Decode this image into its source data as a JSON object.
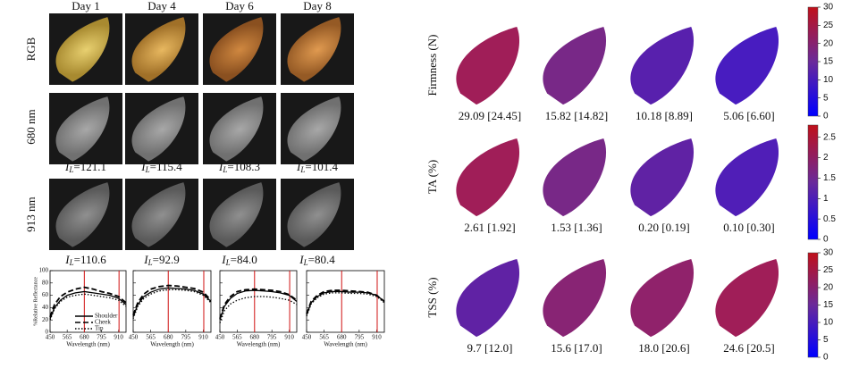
{
  "columns": [
    "Day 1",
    "Day 4",
    "Day 6",
    "Day 8"
  ],
  "rows": [
    "RGB",
    "680 nm",
    "913 nm"
  ],
  "intensity": {
    "symbol": "I",
    "subscript": "L",
    "eq": "=",
    "nm680": [
      "121.1",
      "115.4",
      "108.3",
      "101.4"
    ],
    "nm913": [
      "110.6",
      "92.9",
      "84.0",
      "80.4"
    ]
  },
  "spectra": {
    "xlabel": "Wavelength (nm)",
    "ylabel": "%Relative Reflectance",
    "xlim": [
      450,
      960
    ],
    "ylim": [
      0,
      100
    ],
    "xticks": [
      450,
      565,
      680,
      795,
      910
    ],
    "yticks": [
      0,
      20,
      40,
      60,
      80,
      100
    ],
    "band_lines": [
      680,
      913
    ],
    "x": [
      450,
      480,
      520,
      565,
      620,
      680,
      740,
      795,
      850,
      910,
      960
    ],
    "legend": [
      "Shoulder",
      "Cheek",
      "Tip"
    ],
    "charts": [
      [
        [
          22,
          40,
          52,
          60,
          64,
          66,
          64,
          62,
          60,
          55,
          45
        ],
        [
          25,
          45,
          58,
          65,
          70,
          73,
          70,
          66,
          63,
          58,
          48
        ],
        [
          20,
          38,
          50,
          57,
          60,
          62,
          60,
          58,
          56,
          52,
          42
        ]
      ],
      [
        [
          25,
          45,
          58,
          65,
          70,
          72,
          71,
          70,
          68,
          62,
          50
        ],
        [
          28,
          48,
          62,
          70,
          74,
          76,
          75,
          73,
          71,
          65,
          52
        ],
        [
          22,
          42,
          55,
          62,
          67,
          69,
          69,
          68,
          66,
          60,
          48
        ]
      ],
      [
        [
          20,
          42,
          55,
          63,
          67,
          68,
          67,
          66,
          64,
          60,
          50
        ],
        [
          22,
          45,
          58,
          66,
          69,
          70,
          69,
          68,
          66,
          61,
          52
        ],
        [
          15,
          35,
          46,
          52,
          56,
          58,
          58,
          57,
          55,
          52,
          45
        ]
      ],
      [
        [
          28,
          48,
          58,
          64,
          66,
          66,
          65,
          65,
          64,
          60,
          50
        ],
        [
          30,
          50,
          60,
          66,
          68,
          68,
          67,
          66,
          65,
          60,
          50
        ],
        [
          26,
          46,
          56,
          62,
          64,
          64,
          63,
          63,
          62,
          58,
          48
        ]
      ]
    ]
  },
  "maps": [
    {
      "label": "Firmness (N)",
      "values": [
        "29.09 [24.45]",
        "15.82 [14.82]",
        "10.18 [8.89]",
        "5.06 [6.60]"
      ],
      "ylim": [
        0,
        30
      ],
      "yticks": [
        0,
        5,
        10,
        15,
        20,
        25,
        30
      ],
      "tone": [
        0.75,
        0.5,
        0.3,
        0.2
      ]
    },
    {
      "label": "TA (%)",
      "values": [
        "2.61 [1.92]",
        "1.53 [1.36]",
        "0.20 [0.19]",
        "0.10 [0.30]"
      ],
      "ylim": [
        0,
        2.8
      ],
      "yticks": [
        0,
        0.5,
        1,
        1.5,
        2,
        2.5
      ],
      "tone": [
        0.75,
        0.5,
        0.35,
        0.25
      ]
    },
    {
      "label": "TSS (%)",
      "values": [
        "9.7 [12.0]",
        "15.6 [17.0]",
        "18.0 [20.6]",
        "24.6 [20.5]"
      ],
      "ylim": [
        0,
        30
      ],
      "yticks": [
        0,
        5,
        10,
        15,
        20,
        25,
        30
      ],
      "tone": [
        0.35,
        0.6,
        0.65,
        0.75
      ]
    }
  ]
}
